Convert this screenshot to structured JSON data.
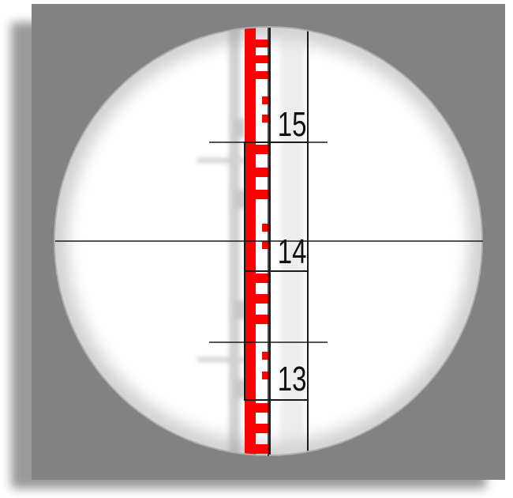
{
  "staff": {
    "labels": [
      {
        "key": "upper",
        "text": "15"
      },
      {
        "key": "center",
        "text": "14"
      },
      {
        "key": "lower",
        "text": "13"
      }
    ]
  },
  "colors": {
    "background": "#ffffff",
    "frame": "#828282",
    "frame_shadow": "#a0a0a0",
    "view": "#ffffff",
    "staff_marks": "#ff0000",
    "crosshair": "#1a1a1a",
    "label": "#111111"
  },
  "icons": {
    "view": "telescope-eyepiece-icon",
    "staff": "leveling-staff-icon",
    "reticle": "crosshair-icon"
  }
}
